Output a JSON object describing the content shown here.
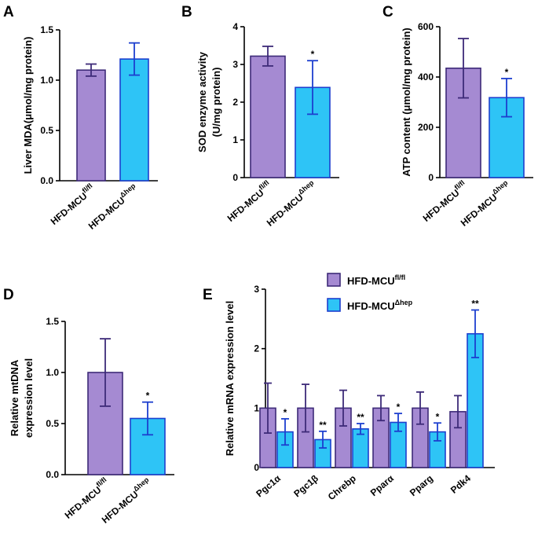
{
  "colors": {
    "wt_fill": "#a58ad2",
    "wt_edge": "#3d2a78",
    "ko_fill": "#2ec4f6",
    "ko_edge": "#1d3fcf",
    "axis": "#000000"
  },
  "legend": {
    "items": [
      {
        "base": "HFD-MCU",
        "sup": "fl/fl",
        "fill": "#a58ad2",
        "edge": "#3d2a78"
      },
      {
        "base": "HFD-MCU",
        "sup": "Δhep",
        "fill": "#2ec4f6",
        "edge": "#1d3fcf"
      }
    ]
  },
  "chart_data": [
    {
      "panel": "A",
      "type": "bar",
      "ylabel": [
        "Liver MDA(μmol/mg protein)"
      ],
      "ylim": [
        0,
        1.5
      ],
      "yticks": [
        0.0,
        0.5,
        1.0,
        1.5
      ],
      "ytick_labels": [
        "0.0",
        "0.5",
        "1.0",
        "1.5"
      ],
      "categories": [
        {
          "base": "HFD-MCU",
          "sup": "fl/fl"
        },
        {
          "base": "HFD-MCU",
          "sup": "Δhep"
        }
      ],
      "values": [
        1.1,
        1.21
      ],
      "errors": [
        0.06,
        0.16
      ],
      "significance": [
        "",
        ""
      ]
    },
    {
      "panel": "B",
      "type": "bar",
      "ylabel": [
        "SOD enzyme activity",
        "(U/mg protein)"
      ],
      "ylim": [
        0,
        4
      ],
      "yticks": [
        0,
        1,
        2,
        3,
        4
      ],
      "ytick_labels": [
        "0",
        "1",
        "2",
        "3",
        "4"
      ],
      "categories": [
        {
          "base": "HFD-MCU",
          "sup": "fl/fl"
        },
        {
          "base": "HFD-MCU",
          "sup": "Δhep"
        }
      ],
      "values": [
        3.22,
        2.39
      ],
      "errors": [
        0.26,
        0.71
      ],
      "significance": [
        "",
        "*"
      ]
    },
    {
      "panel": "C",
      "type": "bar",
      "ylabel": [
        "ATP content (μmol/mg protein)"
      ],
      "ylim": [
        0,
        600
      ],
      "yticks": [
        0,
        200,
        400,
        600
      ],
      "ytick_labels": [
        "0",
        "200",
        "400",
        "600"
      ],
      "categories": [
        {
          "base": "HFD-MCU",
          "sup": "fl/fl"
        },
        {
          "base": "HFD-MCU",
          "sup": "Δhep"
        }
      ],
      "values": [
        435,
        318
      ],
      "errors": [
        118,
        76
      ],
      "significance": [
        "",
        "*"
      ]
    },
    {
      "panel": "D",
      "type": "bar",
      "ylabel": [
        "Relative mtDNA",
        "expression level"
      ],
      "ylim": [
        0,
        1.5
      ],
      "yticks": [
        0.0,
        0.5,
        1.0,
        1.5
      ],
      "ytick_labels": [
        "0.0",
        "0.5",
        "1.0",
        "1.5"
      ],
      "categories": [
        {
          "base": "HFD-MCU",
          "sup": "fl/fl"
        },
        {
          "base": "HFD-MCU",
          "sup": "Δhep"
        }
      ],
      "values": [
        1.0,
        0.55
      ],
      "errors": [
        0.33,
        0.16
      ],
      "significance": [
        "",
        "*"
      ]
    },
    {
      "panel": "E",
      "type": "bar",
      "ylabel": [
        "Relative mRNA expression level"
      ],
      "ylim": [
        0,
        3
      ],
      "yticks": [
        0,
        1,
        2,
        3
      ],
      "ytick_labels": [
        "0",
        "1",
        "2",
        "3"
      ],
      "categories": [
        "Pgc1α",
        "Pgc1β",
        "Chrebp",
        "Pparα",
        "Pparg",
        "Pdk4"
      ],
      "series": [
        {
          "name": "HFD-MCUfl/fl",
          "values": [
            1.0,
            1.0,
            1.0,
            1.0,
            1.0,
            0.94
          ],
          "errors": [
            0.42,
            0.4,
            0.3,
            0.21,
            0.27,
            0.27
          ],
          "significance": [
            "",
            "",
            "",
            "",
            "",
            ""
          ]
        },
        {
          "name": "HFD-MCUΔhep",
          "values": [
            0.6,
            0.47,
            0.65,
            0.76,
            0.6,
            2.25
          ],
          "errors": [
            0.22,
            0.14,
            0.09,
            0.15,
            0.15,
            0.4
          ],
          "significance": [
            "*",
            "**",
            "**",
            "*",
            "*",
            "**"
          ]
        }
      ]
    }
  ]
}
